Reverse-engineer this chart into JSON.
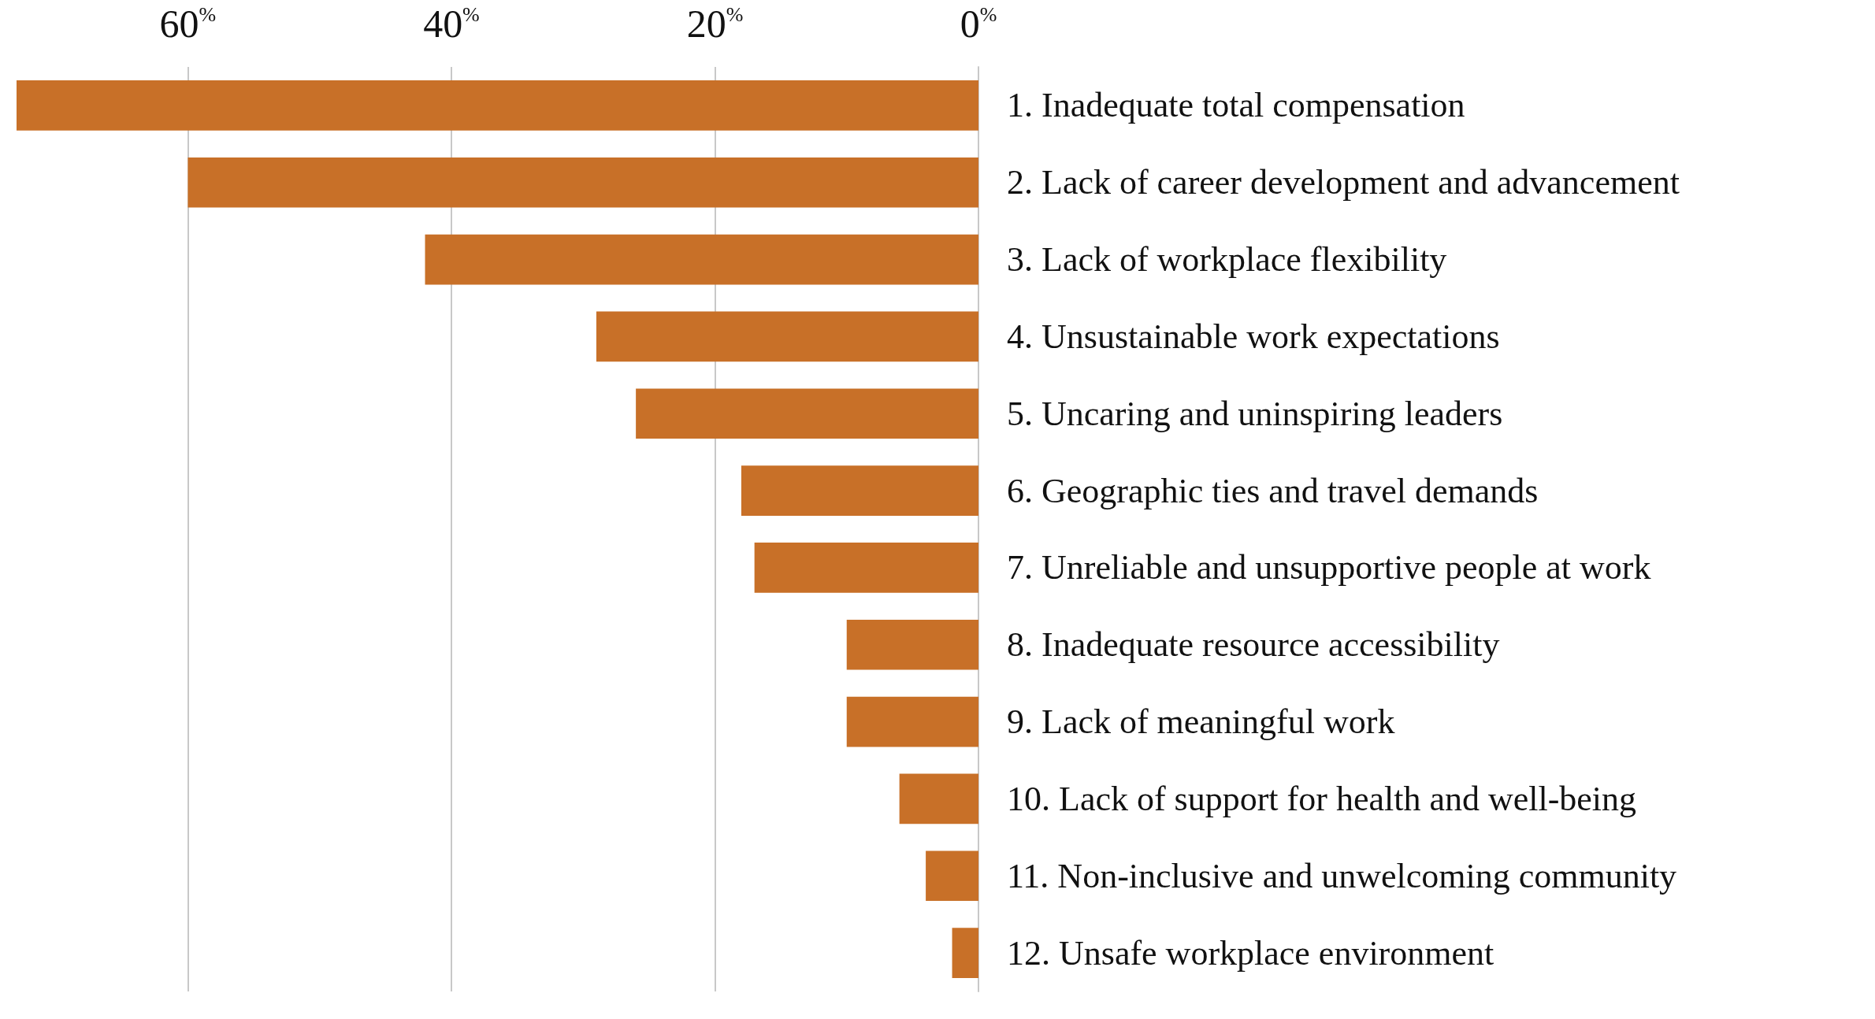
{
  "chart_data": {
    "type": "bar",
    "orientation": "horizontal",
    "categories": [
      "1. Inadequate total compensation",
      "2. Lack of career development and advancement",
      "3. Lack of workplace flexibility",
      "4. Unsustainable work expectations",
      "5. Uncaring and uninspiring leaders",
      "6. Geographic ties and travel demands",
      "7. Unreliable and unsupportive people at work",
      "8. Inadequate resource accessibility",
      "9. Lack of meaningful work",
      "10. Lack of support for health and well-being",
      "11. Non-inclusive and unwelcoming community",
      "12. Unsafe workplace environment"
    ],
    "values": [
      73,
      60,
      42,
      29,
      26,
      18,
      17,
      10,
      10,
      6,
      4,
      2
    ],
    "color": "#c87028",
    "xlim": [
      73,
      0
    ],
    "xticks": [
      {
        "value": 60,
        "label": "60$^{%}$"
      },
      {
        "value": 40,
        "label": "40$^{%}$"
      },
      {
        "value": 20,
        "label": "20$^{%}$"
      },
      {
        "value": 0,
        "label": "0$^{%}$"
      }
    ],
    "grid": "x"
  }
}
